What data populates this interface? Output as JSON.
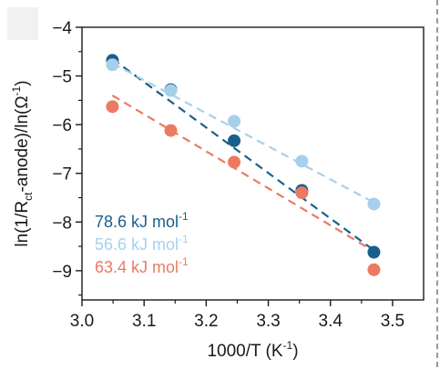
{
  "chart_data": {
    "type": "scatter",
    "xlabel": "1000/T (K",
    "xlabel_sup": "-1",
    "xlabel_close": ")",
    "ylabel_pre": "ln(1/R",
    "ylabel_sub": "ct",
    "ylabel_mid": "-anode)/ln(Ω",
    "ylabel_sup": "-1",
    "ylabel_close": ")",
    "xlim": [
      3.0,
      3.55
    ],
    "ylim": [
      -9.6,
      -4.0
    ],
    "x_ticks": [
      3.0,
      3.1,
      3.2,
      3.3,
      3.4,
      3.5
    ],
    "x_tick_labels": [
      "3.0",
      "3.1",
      "3.2",
      "3.3",
      "3.4",
      "3.5"
    ],
    "y_ticks": [
      -4,
      -5,
      -6,
      -7,
      -8,
      -9
    ],
    "y_tick_labels": [
      "−4",
      "−5",
      "−6",
      "−7",
      "−8",
      "−9"
    ],
    "grid": false,
    "legend_placement": "bottom-left",
    "series": [
      {
        "name": "78.6 kJ mol",
        "name_sup": "-1",
        "color": "#1a5f8c",
        "x": [
          3.049,
          3.143,
          3.245,
          3.354,
          3.47
        ],
        "y": [
          -4.68,
          -5.28,
          -6.33,
          -7.35,
          -8.62
        ],
        "fit": [
          [
            3.049,
            -4.65
          ],
          [
            3.47,
            -8.58
          ]
        ]
      },
      {
        "name": "56.6 kJ mol",
        "name_sup": "-1",
        "color": "#a6d0ea",
        "x": [
          3.049,
          3.143,
          3.245,
          3.354,
          3.47
        ],
        "y": [
          -4.77,
          -5.3,
          -5.93,
          -6.75,
          -7.63
        ],
        "fit": [
          [
            3.049,
            -4.74
          ],
          [
            3.47,
            -7.6
          ]
        ]
      },
      {
        "name": "63.4 kJ mol",
        "name_sup": "-1",
        "color": "#ec7a62",
        "x": [
          3.049,
          3.143,
          3.245,
          3.354,
          3.47
        ],
        "y": [
          -5.63,
          -6.12,
          -6.77,
          -7.4,
          -8.98
        ],
        "fit": [
          [
            3.049,
            -5.4
          ],
          [
            3.47,
            -8.6
          ]
        ]
      }
    ]
  }
}
